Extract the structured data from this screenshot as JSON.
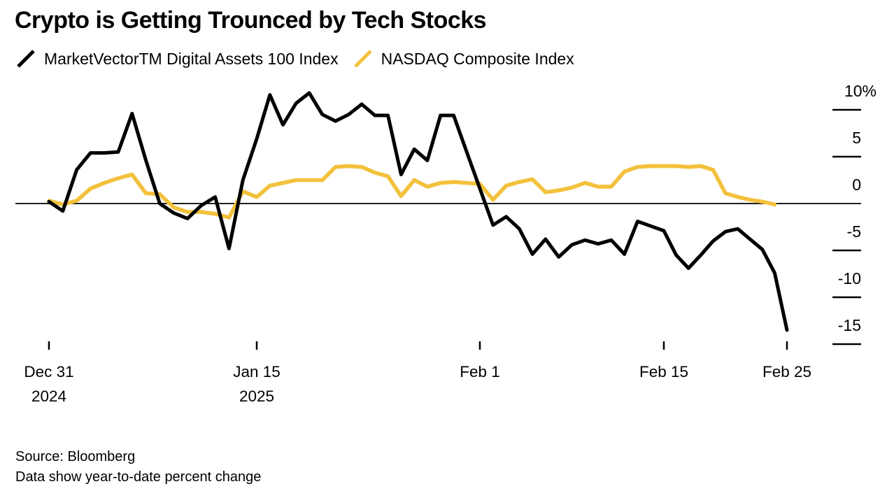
{
  "title": "Crypto is Getting Trounced by Tech Stocks",
  "legend": {
    "items": [
      {
        "label": "MarketVectorTM Digital Assets 100 Index",
        "color": "#000000",
        "icon": "slash-icon"
      },
      {
        "label": "NASDAQ Composite Index",
        "color": "#F3C13C",
        "icon": "slash-icon"
      }
    ]
  },
  "footer": {
    "source": "Source: Bloomberg",
    "note": "Data show year-to-date percent change"
  },
  "chart_data": {
    "type": "line",
    "title": "Crypto is Getting Trounced by Tech Stocks",
    "xlabel": "",
    "ylabel": "Year-to-date percent change",
    "unit": "%",
    "ylim": [
      -16.5,
      12.5
    ],
    "grid": false,
    "legend_position": "top-left",
    "x_unit": "daily points, days since Dec 31 2024",
    "y_ticks": [
      {
        "label": "10%",
        "value": 10
      },
      {
        "label": "5",
        "value": 5
      },
      {
        "label": "0",
        "value": 0
      },
      {
        "label": "-5",
        "value": -5
      },
      {
        "label": "-10",
        "value": -10
      },
      {
        "label": "-15",
        "value": -15
      }
    ],
    "x_ticks": [
      {
        "label": "Dec 31",
        "sublabel": "2024",
        "day": 0
      },
      {
        "label": "Jan 15",
        "sublabel": "2025",
        "day": 15
      },
      {
        "label": "Feb 1",
        "sublabel": "",
        "day": 32
      },
      {
        "label": "Feb 15",
        "sublabel": "",
        "day": 46
      },
      {
        "label": "Feb 25",
        "sublabel": "",
        "day": 56
      }
    ],
    "series": [
      {
        "name": "MarketVectorTM Digital Assets 100 Index",
        "color": "#000000",
        "start": "2024-12-31",
        "end": "2025-02-25",
        "values": [
          0.2,
          -0.8,
          3.6,
          5.4,
          5.4,
          5.5,
          9.6,
          4.6,
          0.0,
          -1.0,
          -1.6,
          -0.2,
          0.7,
          -4.8,
          2.5,
          6.9,
          11.6,
          8.4,
          10.7,
          11.8,
          9.5,
          8.8,
          9.5,
          10.6,
          9.4,
          9.4,
          3.1,
          5.8,
          4.6,
          9.4,
          9.4,
          5.5,
          1.6,
          -2.3,
          -1.4,
          -2.7,
          -5.4,
          -3.8,
          -5.7,
          -4.4,
          -3.9,
          -4.3,
          -3.9,
          -5.4,
          -1.9,
          -2.4,
          -2.9,
          -5.5,
          -6.9,
          -5.5,
          -4.0,
          -3.0,
          -2.7,
          -3.8,
          -4.9,
          -7.4,
          -13.5
        ]
      },
      {
        "name": "NASDAQ Composite Index",
        "color": "#F3C13C",
        "start": "2024-12-31",
        "end": "2025-02-24",
        "values": [
          0.3,
          -0.1,
          0.3,
          1.6,
          2.2,
          2.7,
          3.1,
          1.1,
          1.0,
          -0.4,
          -0.9,
          -0.9,
          -1.1,
          -1.5,
          1.3,
          0.7,
          1.9,
          2.2,
          2.5,
          2.5,
          2.5,
          3.9,
          4.0,
          3.9,
          3.3,
          2.9,
          0.8,
          2.5,
          1.8,
          2.2,
          2.3,
          2.2,
          2.1,
          0.4,
          1.9,
          2.3,
          2.6,
          1.2,
          1.4,
          1.7,
          2.2,
          1.8,
          1.8,
          3.4,
          3.9,
          4.0,
          4.0,
          4.0,
          3.9,
          4.0,
          3.6,
          1.1,
          0.7,
          0.4,
          0.2,
          -0.1
        ]
      }
    ]
  }
}
